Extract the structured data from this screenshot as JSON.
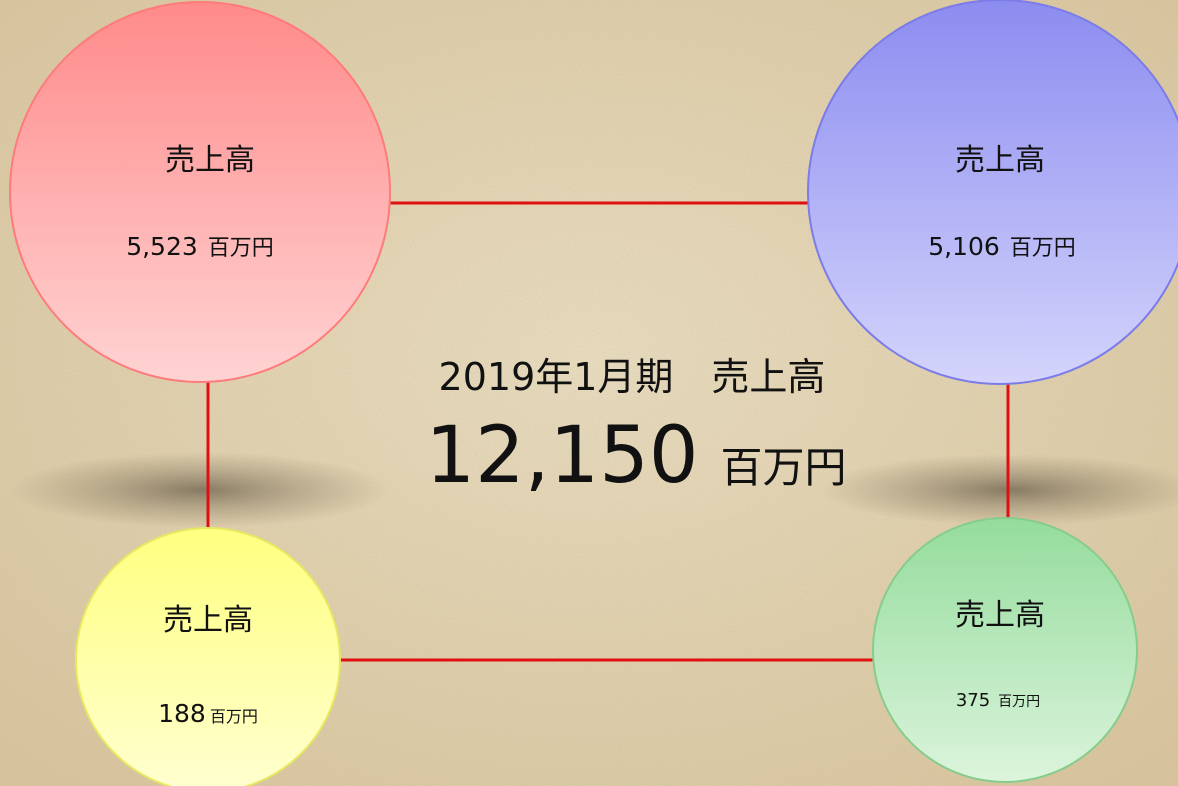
{
  "center": {
    "title": "2019年1月期　売上高",
    "value": "12,150",
    "unit": "百万円"
  },
  "nodes": [
    {
      "label": "売上高",
      "value": "5,523",
      "unit": "百万円"
    },
    {
      "label": "売上高",
      "value": "5,106",
      "unit": "百万円"
    },
    {
      "label": "売上高",
      "value": "188",
      "unit": "百万円"
    },
    {
      "label": "売上高",
      "value": "375",
      "unit": "百万円"
    }
  ]
}
